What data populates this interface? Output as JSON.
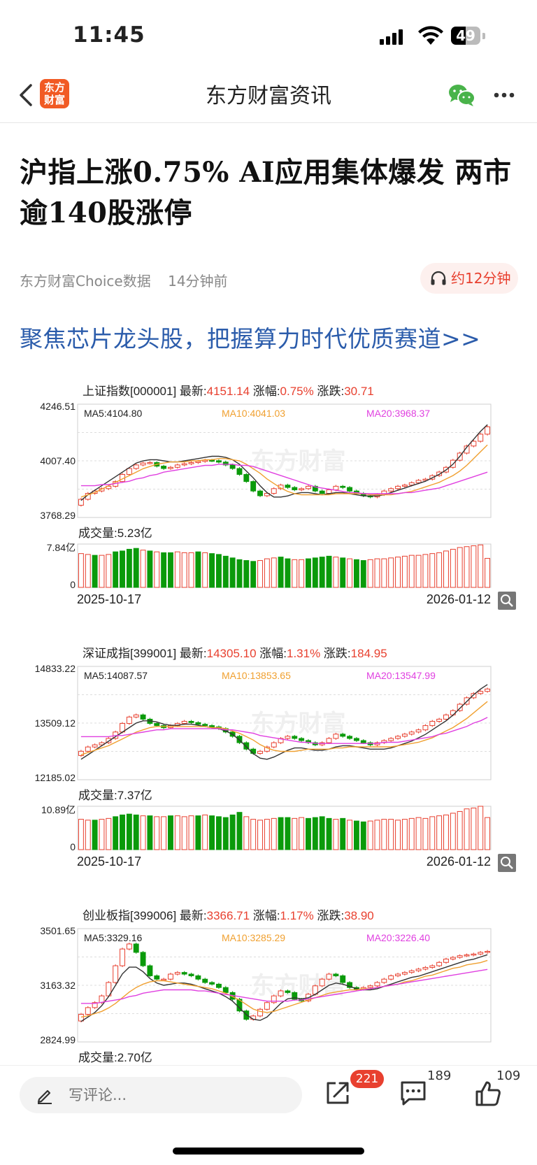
{
  "status": {
    "time": "11:45",
    "battery": "49",
    "battery_fraction": 0.49
  },
  "nav": {
    "title": "东方财富资讯",
    "logo_line1": "东方",
    "logo_line2": "财富"
  },
  "article": {
    "headline": "沪指上涨0.75% AI应用集体爆发 两市逾140股涨停",
    "source": "东方财富Choice数据",
    "time": "14分钟前",
    "audio": "约12分钟",
    "promo": "聚焦芯片龙头股，把握算力时代优质赛道>>"
  },
  "chart_data": [
    {
      "type": "candlestick",
      "name": "上证指数[000001]",
      "latest_label": "最新:",
      "latest": "4151.14",
      "pct_label": "涨幅:",
      "pct": "0.75%",
      "chg_label": "涨跌:",
      "chg": "30.71",
      "ma5": "MA5:4104.80",
      "ma10": "MA10:4041.03",
      "ma20": "MA20:3968.37",
      "y_ticks": [
        "4246.51",
        "4007.40",
        "3768.29"
      ],
      "ylim": [
        3768.29,
        4246.51
      ],
      "volume_label": "成交量:5.23亿",
      "vol_ticks": [
        "7.84亿",
        "0"
      ],
      "vol_max": 7.84,
      "x_start": "2025-10-17",
      "x_end": "2026-01-12",
      "watermark": "东方财富",
      "closes": [
        3845,
        3870,
        3880,
        3890,
        3900,
        3920,
        3950,
        3975,
        3990,
        3998,
        4000,
        3985,
        3975,
        3980,
        3990,
        3995,
        4000,
        4005,
        4010,
        4008,
        4002,
        3990,
        3975,
        3950,
        3920,
        3880,
        3860,
        3870,
        3890,
        3905,
        3895,
        3885,
        3890,
        3900,
        3880,
        3870,
        3885,
        3900,
        3895,
        3880,
        3870,
        3860,
        3855,
        3865,
        3880,
        3890,
        3900,
        3905,
        3915,
        3925,
        3930,
        3945,
        3960,
        3980,
        4010,
        4040,
        4070,
        4090,
        4120,
        4151
      ],
      "ma_fracs": {
        "ma5": [
          0.15,
          0.2,
          0.24,
          0.28,
          0.32,
          0.36,
          0.4,
          0.44,
          0.48,
          0.5,
          0.51,
          0.51,
          0.5,
          0.49,
          0.49,
          0.5,
          0.51,
          0.52,
          0.53,
          0.54,
          0.54,
          0.53,
          0.51,
          0.47,
          0.41,
          0.35,
          0.28,
          0.22,
          0.18,
          0.18,
          0.19,
          0.21,
          0.22,
          0.22,
          0.21,
          0.2,
          0.21,
          0.22,
          0.22,
          0.21,
          0.2,
          0.19,
          0.19,
          0.19,
          0.2,
          0.22,
          0.24,
          0.26,
          0.28,
          0.3,
          0.32,
          0.35,
          0.38,
          0.42,
          0.47,
          0.54,
          0.62,
          0.69,
          0.76,
          0.82
        ],
        "ma10": [
          0.18,
          0.2,
          0.22,
          0.25,
          0.28,
          0.31,
          0.34,
          0.37,
          0.4,
          0.43,
          0.45,
          0.47,
          0.48,
          0.49,
          0.49,
          0.49,
          0.5,
          0.5,
          0.51,
          0.51,
          0.52,
          0.52,
          0.51,
          0.5,
          0.47,
          0.43,
          0.39,
          0.34,
          0.3,
          0.26,
          0.23,
          0.21,
          0.2,
          0.2,
          0.2,
          0.2,
          0.2,
          0.21,
          0.21,
          0.21,
          0.21,
          0.21,
          0.2,
          0.2,
          0.2,
          0.2,
          0.21,
          0.22,
          0.23,
          0.25,
          0.27,
          0.29,
          0.31,
          0.34,
          0.37,
          0.41,
          0.46,
          0.52,
          0.58,
          0.64
        ],
        "ma20": [
          0.28,
          0.28,
          0.28,
          0.29,
          0.29,
          0.3,
          0.31,
          0.32,
          0.34,
          0.35,
          0.37,
          0.38,
          0.4,
          0.41,
          0.42,
          0.43,
          0.44,
          0.45,
          0.46,
          0.46,
          0.47,
          0.47,
          0.47,
          0.46,
          0.46,
          0.45,
          0.43,
          0.41,
          0.39,
          0.37,
          0.35,
          0.33,
          0.31,
          0.29,
          0.27,
          0.26,
          0.25,
          0.24,
          0.23,
          0.22,
          0.22,
          0.21,
          0.21,
          0.21,
          0.21,
          0.21,
          0.21,
          0.22,
          0.22,
          0.23,
          0.24,
          0.25,
          0.26,
          0.28,
          0.3,
          0.32,
          0.34,
          0.36,
          0.38,
          0.4
        ]
      },
      "volumes": [
        0.78,
        0.76,
        0.74,
        0.74,
        0.76,
        0.82,
        0.84,
        0.88,
        0.9,
        0.86,
        0.84,
        0.82,
        0.8,
        0.8,
        0.82,
        0.8,
        0.8,
        0.82,
        0.8,
        0.78,
        0.76,
        0.72,
        0.68,
        0.64,
        0.62,
        0.6,
        0.62,
        0.66,
        0.68,
        0.7,
        0.66,
        0.64,
        0.64,
        0.66,
        0.68,
        0.7,
        0.72,
        0.7,
        0.68,
        0.66,
        0.64,
        0.62,
        0.64,
        0.66,
        0.66,
        0.68,
        0.7,
        0.72,
        0.74,
        0.74,
        0.76,
        0.78,
        0.8,
        0.84,
        0.88,
        0.92,
        0.94,
        0.96,
        0.98,
        0.67
      ],
      "vol_up": [
        1,
        1,
        0,
        1,
        1,
        0,
        0,
        0,
        0,
        1,
        0,
        1,
        0,
        0,
        1,
        1,
        1,
        0,
        1,
        0,
        0,
        0,
        0,
        0,
        0,
        0,
        1,
        1,
        1,
        0,
        0,
        1,
        1,
        0,
        0,
        0,
        0,
        1,
        0,
        1,
        0,
        0,
        1,
        1,
        1,
        1,
        1,
        1,
        1,
        1,
        1,
        1,
        1,
        1,
        1,
        1,
        1,
        1,
        1,
        1
      ]
    },
    {
      "type": "candlestick",
      "name": "深证成指[399001]",
      "latest_label": "最新:",
      "latest": "14305.10",
      "pct_label": "涨幅:",
      "pct": "1.31%",
      "chg_label": "涨跌:",
      "chg": "184.95",
      "ma5": "MA5:14087.57",
      "ma10": "MA10:13853.65",
      "ma20": "MA20:13547.99",
      "y_ticks": [
        "14833.22",
        "13509.12",
        "12185.02"
      ],
      "ylim": [
        12185.02,
        14833.22
      ],
      "volume_label": "成交量:7.37亿",
      "vol_ticks": [
        "10.89亿",
        "0"
      ],
      "vol_max": 10.89,
      "x_start": "2025-10-17",
      "x_end": "2026-01-12",
      "watermark": "东方财富",
      "closes": [
        12850,
        12950,
        13000,
        13050,
        13150,
        13300,
        13500,
        13650,
        13700,
        13600,
        13500,
        13450,
        13400,
        13450,
        13500,
        13550,
        13520,
        13480,
        13450,
        13420,
        13380,
        13300,
        13200,
        13050,
        12900,
        12800,
        12850,
        12950,
        13050,
        13150,
        13200,
        13150,
        13100,
        13050,
        13000,
        13050,
        13150,
        13250,
        13200,
        13150,
        13100,
        13050,
        13000,
        13050,
        13100,
        13150,
        13200,
        13250,
        13300,
        13350,
        13450,
        13550,
        13600,
        13700,
        13800,
        13950,
        14100,
        14200,
        14250,
        14305
      ],
      "ma_fracs": {
        "ma5": [
          0.18,
          0.22,
          0.26,
          0.3,
          0.34,
          0.38,
          0.42,
          0.46,
          0.5,
          0.52,
          0.52,
          0.51,
          0.49,
          0.48,
          0.48,
          0.49,
          0.49,
          0.48,
          0.47,
          0.46,
          0.45,
          0.43,
          0.4,
          0.35,
          0.29,
          0.23,
          0.19,
          0.18,
          0.2,
          0.23,
          0.26,
          0.28,
          0.28,
          0.27,
          0.26,
          0.26,
          0.27,
          0.29,
          0.3,
          0.3,
          0.29,
          0.28,
          0.27,
          0.27,
          0.27,
          0.28,
          0.3,
          0.32,
          0.34,
          0.37,
          0.4,
          0.44,
          0.48,
          0.52,
          0.57,
          0.63,
          0.69,
          0.75,
          0.8,
          0.84
        ],
        "ma10": [
          0.22,
          0.24,
          0.26,
          0.28,
          0.3,
          0.33,
          0.36,
          0.39,
          0.42,
          0.44,
          0.46,
          0.47,
          0.47,
          0.47,
          0.47,
          0.47,
          0.47,
          0.47,
          0.47,
          0.46,
          0.46,
          0.45,
          0.43,
          0.41,
          0.38,
          0.35,
          0.31,
          0.28,
          0.26,
          0.25,
          0.25,
          0.25,
          0.26,
          0.27,
          0.27,
          0.27,
          0.27,
          0.28,
          0.28,
          0.29,
          0.29,
          0.29,
          0.29,
          0.29,
          0.29,
          0.29,
          0.3,
          0.31,
          0.32,
          0.33,
          0.35,
          0.37,
          0.4,
          0.43,
          0.46,
          0.5,
          0.54,
          0.59,
          0.64,
          0.69
        ],
        "ma20": [
          0.38,
          0.38,
          0.38,
          0.38,
          0.38,
          0.39,
          0.39,
          0.4,
          0.41,
          0.42,
          0.43,
          0.44,
          0.44,
          0.45,
          0.45,
          0.45,
          0.45,
          0.45,
          0.45,
          0.45,
          0.45,
          0.44,
          0.44,
          0.43,
          0.42,
          0.41,
          0.39,
          0.38,
          0.37,
          0.36,
          0.35,
          0.34,
          0.33,
          0.33,
          0.32,
          0.32,
          0.32,
          0.32,
          0.32,
          0.32,
          0.32,
          0.32,
          0.32,
          0.32,
          0.33,
          0.33,
          0.33,
          0.34,
          0.35,
          0.36,
          0.37,
          0.38,
          0.4,
          0.41,
          0.43,
          0.45,
          0.47,
          0.5,
          0.52,
          0.55
        ]
      },
      "volumes": [
        0.7,
        0.68,
        0.68,
        0.7,
        0.72,
        0.76,
        0.8,
        0.82,
        0.8,
        0.78,
        0.78,
        0.76,
        0.76,
        0.78,
        0.78,
        0.76,
        0.78,
        0.78,
        0.8,
        0.78,
        0.76,
        0.74,
        0.8,
        0.86,
        0.76,
        0.7,
        0.68,
        0.7,
        0.72,
        0.74,
        0.74,
        0.72,
        0.74,
        0.72,
        0.74,
        0.76,
        0.72,
        0.7,
        0.72,
        0.68,
        0.66,
        0.64,
        0.66,
        0.68,
        0.7,
        0.7,
        0.68,
        0.7,
        0.72,
        0.74,
        0.72,
        0.76,
        0.78,
        0.8,
        0.84,
        0.88,
        0.94,
        0.96,
        1.0,
        0.74
      ],
      "vol_up": [
        1,
        1,
        0,
        1,
        1,
        0,
        0,
        0,
        0,
        1,
        0,
        1,
        1,
        0,
        1,
        1,
        1,
        0,
        1,
        0,
        0,
        0,
        0,
        0,
        1,
        1,
        1,
        1,
        1,
        0,
        0,
        1,
        1,
        0,
        0,
        0,
        0,
        1,
        0,
        1,
        0,
        0,
        1,
        1,
        1,
        1,
        1,
        1,
        1,
        1,
        1,
        1,
        1,
        1,
        1,
        1,
        1,
        1,
        1,
        1
      ]
    },
    {
      "type": "candlestick",
      "name": "创业板指[399006]",
      "latest_label": "最新:",
      "latest": "3366.71",
      "pct_label": "涨幅:",
      "pct": "1.17%",
      "chg_label": "涨跌:",
      "chg": "38.90",
      "ma5": "MA5:3329.16",
      "ma10": "MA10:3285.29",
      "ma20": "MA20:3226.40",
      "y_ticks": [
        "3501.65",
        "3163.32",
        "2824.99"
      ],
      "ylim": [
        2824.99,
        3501.65
      ],
      "volume_label": "成交量:2.70亿",
      "x_start": "",
      "x_end": "",
      "watermark": "东方财富",
      "closes": [
        2990,
        3030,
        3060,
        3100,
        3180,
        3280,
        3380,
        3410,
        3360,
        3280,
        3220,
        3200,
        3200,
        3230,
        3240,
        3230,
        3220,
        3200,
        3180,
        3170,
        3150,
        3120,
        3080,
        3010,
        2960,
        2980,
        3020,
        3060,
        3100,
        3130,
        3120,
        3080,
        3070,
        3110,
        3160,
        3200,
        3230,
        3220,
        3180,
        3150,
        3140,
        3150,
        3160,
        3180,
        3200,
        3220,
        3230,
        3240,
        3250,
        3260,
        3270,
        3280,
        3300,
        3320,
        3330,
        3340,
        3345,
        3350,
        3360,
        3366
      ],
      "ma_fracs": {
        "ma5": [
          0.18,
          0.22,
          0.26,
          0.32,
          0.4,
          0.5,
          0.6,
          0.66,
          0.66,
          0.62,
          0.56,
          0.52,
          0.5,
          0.51,
          0.52,
          0.52,
          0.51,
          0.49,
          0.47,
          0.45,
          0.43,
          0.4,
          0.36,
          0.3,
          0.24,
          0.2,
          0.19,
          0.22,
          0.28,
          0.34,
          0.38,
          0.39,
          0.38,
          0.39,
          0.42,
          0.46,
          0.5,
          0.52,
          0.51,
          0.49,
          0.47,
          0.46,
          0.46,
          0.47,
          0.49,
          0.51,
          0.53,
          0.55,
          0.57,
          0.58,
          0.6,
          0.62,
          0.64,
          0.66,
          0.68,
          0.7,
          0.72,
          0.73,
          0.75,
          0.77
        ],
        "ma10": [
          0.22,
          0.23,
          0.25,
          0.27,
          0.3,
          0.34,
          0.39,
          0.44,
          0.48,
          0.51,
          0.53,
          0.54,
          0.54,
          0.53,
          0.52,
          0.51,
          0.5,
          0.49,
          0.48,
          0.47,
          0.45,
          0.43,
          0.4,
          0.37,
          0.33,
          0.29,
          0.27,
          0.26,
          0.27,
          0.29,
          0.31,
          0.33,
          0.35,
          0.37,
          0.39,
          0.41,
          0.43,
          0.44,
          0.45,
          0.46,
          0.46,
          0.47,
          0.47,
          0.48,
          0.49,
          0.5,
          0.51,
          0.53,
          0.54,
          0.56,
          0.58,
          0.59,
          0.61,
          0.63,
          0.65,
          0.66,
          0.68,
          0.69,
          0.7,
          0.72
        ],
        "ma20": [
          0.34,
          0.34,
          0.34,
          0.35,
          0.36,
          0.37,
          0.38,
          0.4,
          0.41,
          0.43,
          0.44,
          0.45,
          0.46,
          0.46,
          0.46,
          0.46,
          0.46,
          0.45,
          0.45,
          0.44,
          0.43,
          0.42,
          0.41,
          0.4,
          0.39,
          0.38,
          0.37,
          0.36,
          0.36,
          0.36,
          0.36,
          0.37,
          0.37,
          0.38,
          0.39,
          0.4,
          0.41,
          0.42,
          0.43,
          0.44,
          0.45,
          0.46,
          0.47,
          0.48,
          0.49,
          0.5,
          0.51,
          0.52,
          0.53,
          0.54,
          0.55,
          0.56,
          0.57,
          0.58,
          0.59,
          0.6,
          0.61,
          0.62,
          0.63,
          0.64
        ]
      }
    }
  ],
  "bottom": {
    "comment_placeholder": "写评论...",
    "share_badge": "221",
    "comments": "189",
    "likes": "109"
  }
}
